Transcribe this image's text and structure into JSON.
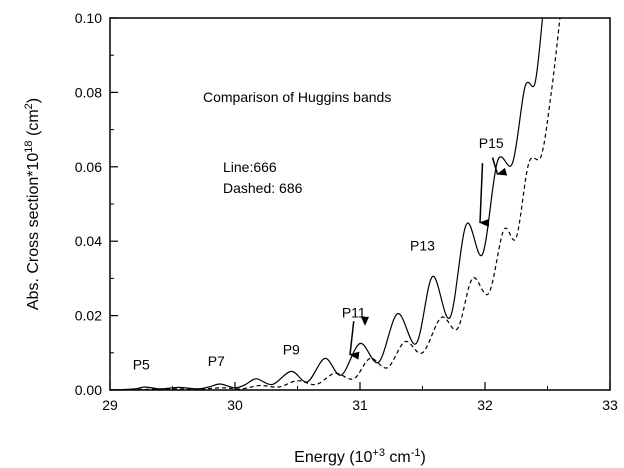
{
  "chart_data": {
    "type": "line",
    "title": "Comparison of Huggins bands",
    "xlabel": {
      "main": "Energy (10",
      "sup": "+3",
      "mid": " cm",
      "sup2": "-1",
      "end": ")"
    },
    "ylabel": {
      "main": "Abs. Cross section*10",
      "sup": "18",
      "mid": " (cm",
      "sup2": "2",
      "end": ")"
    },
    "xlim": [
      29,
      33
    ],
    "ylim": [
      0,
      0.1
    ],
    "xticks": [
      29,
      30,
      31,
      32,
      33
    ],
    "xtick_labels": [
      "29",
      "30",
      "31",
      "32",
      "33"
    ],
    "yticks": [
      0,
      0.02,
      0.04,
      0.06,
      0.08,
      0.1
    ],
    "ytick_labels": [
      "0.00",
      "0.02",
      "0.04",
      "0.06",
      "0.08",
      "0.10"
    ],
    "grid": false,
    "legend_text": [
      "Line:666",
      "Dashed: 686"
    ],
    "series": [
      {
        "style": "solid",
        "color": "#000000",
        "x": [
          29.0,
          29.2,
          29.28,
          29.4,
          29.55,
          29.7,
          29.8,
          29.88,
          30.0,
          30.08,
          30.17,
          30.3,
          30.45,
          30.58,
          30.72,
          30.85,
          31.0,
          31.15,
          31.3,
          31.45,
          31.58,
          31.72,
          31.85,
          31.98,
          32.1,
          32.22,
          32.32,
          32.4,
          32.46
        ],
        "y": [
          0.0,
          0.0003,
          0.0008,
          0.0003,
          0.0007,
          0.0003,
          0.0009,
          0.0016,
          0.0006,
          0.0014,
          0.003,
          0.0015,
          0.005,
          0.0022,
          0.0085,
          0.004,
          0.0125,
          0.0075,
          0.0205,
          0.0125,
          0.0305,
          0.0195,
          0.0445,
          0.0365,
          0.0615,
          0.061,
          0.0815,
          0.0825,
          0.101
        ]
      },
      {
        "style": "dashed",
        "color": "#000000",
        "x": [
          29.0,
          29.3,
          29.5,
          29.7,
          29.9,
          30.05,
          30.2,
          30.35,
          30.5,
          30.65,
          30.8,
          30.95,
          31.08,
          31.22,
          31.36,
          31.5,
          31.65,
          31.78,
          31.9,
          32.03,
          32.15,
          32.25,
          32.35,
          32.45,
          32.53,
          32.6
        ],
        "y": [
          0.0,
          0.0002,
          0.0003,
          0.0002,
          0.0006,
          0.0003,
          0.0012,
          0.0008,
          0.0025,
          0.0015,
          0.0045,
          0.003,
          0.0085,
          0.006,
          0.013,
          0.01,
          0.0195,
          0.0165,
          0.03,
          0.026,
          0.043,
          0.041,
          0.061,
          0.063,
          0.08,
          0.1
        ]
      }
    ],
    "peak_labels": [
      {
        "text": "P5",
        "x": 29.25,
        "y": 0.0055
      },
      {
        "text": "P7",
        "x": 29.85,
        "y": 0.0065
      },
      {
        "text": "P9",
        "x": 30.45,
        "y": 0.0095
      },
      {
        "text": "P11",
        "x": 30.95,
        "y": 0.0195
      },
      {
        "text": "P13",
        "x": 31.5,
        "y": 0.0375
      },
      {
        "text": "P15",
        "x": 32.05,
        "y": 0.065
      }
    ],
    "arrows": [
      {
        "kind": "line",
        "x1": 30.95,
        "y1": 0.0185,
        "x2": 30.92,
        "y2": 0.0095
      },
      {
        "kind": "head",
        "x": 31.04,
        "y": 0.0175
      },
      {
        "kind": "line",
        "x1": 31.98,
        "y1": 0.061,
        "x2": 31.96,
        "y2": 0.045
      },
      {
        "kind": "line",
        "x1": 32.06,
        "y1": 0.0625,
        "x2": 32.1,
        "y2": 0.058
      }
    ]
  }
}
